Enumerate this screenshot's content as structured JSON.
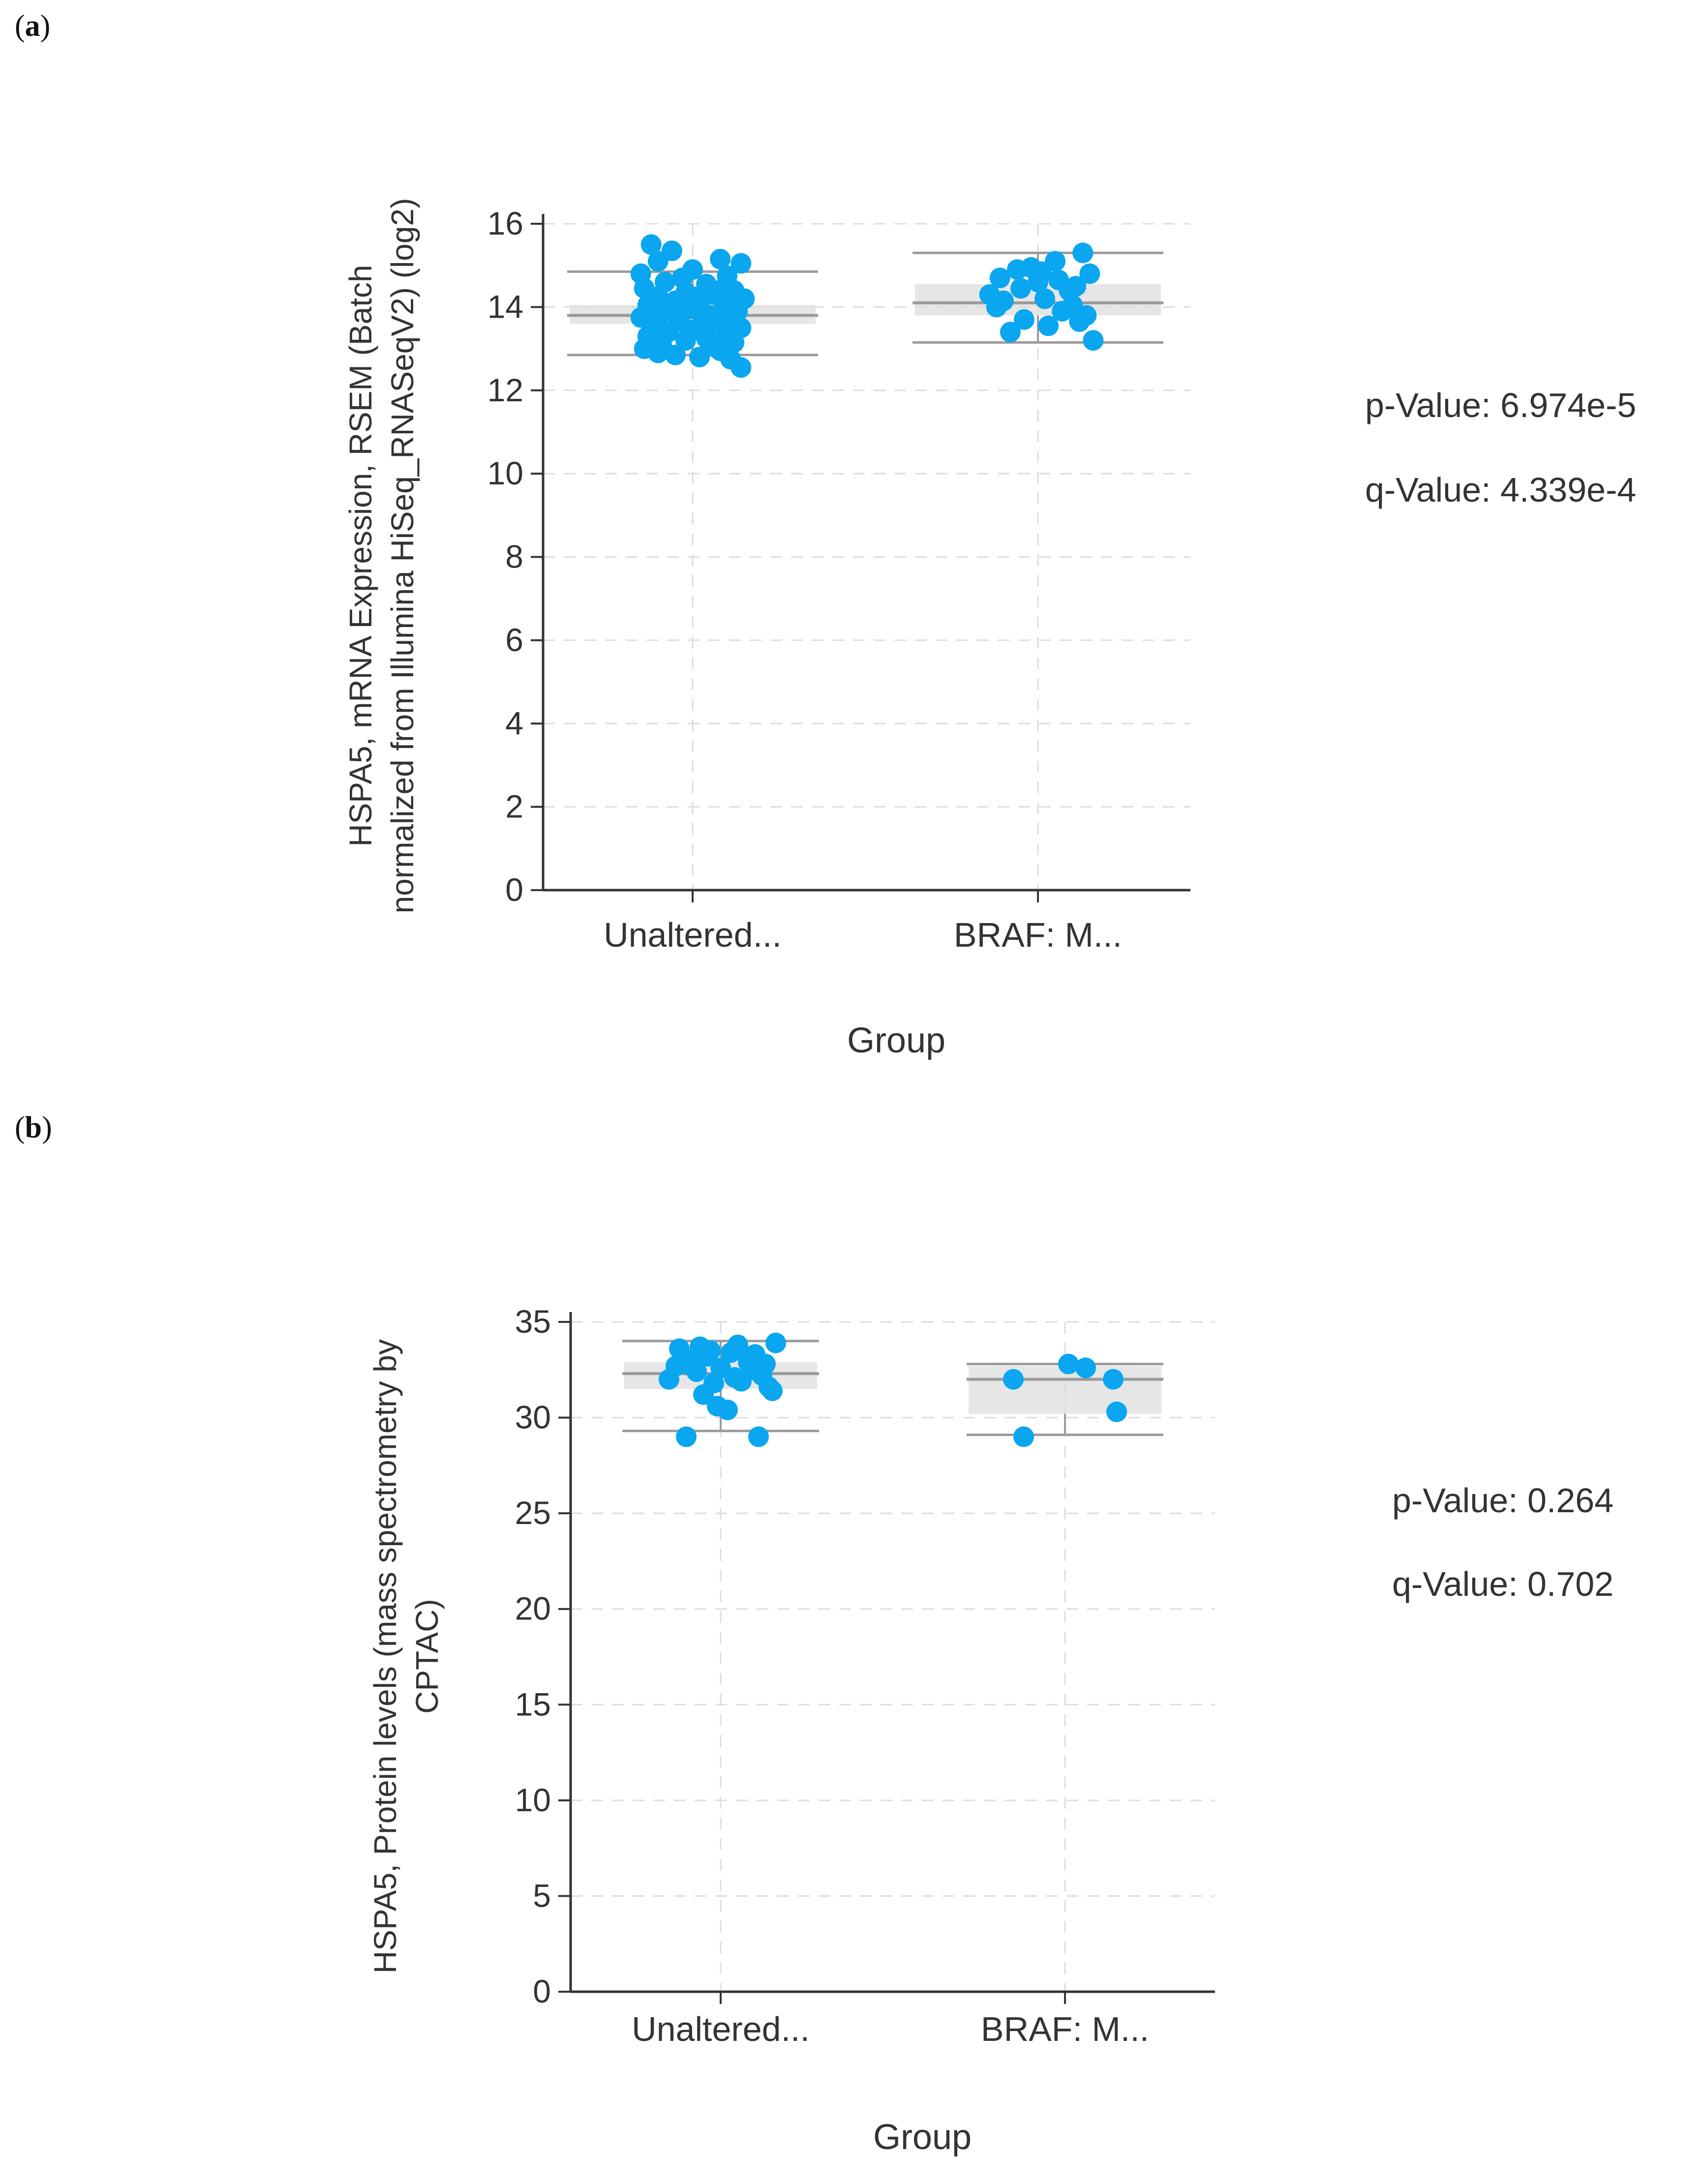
{
  "chart_data": [
    {
      "type": "scatter",
      "panel": "a",
      "title": "",
      "xlabel": "Group",
      "ylabel_lines": [
        "HSPA5, mRNA Expression, RSEM (Batch",
        "normalized from Illumina HiSeq_RNASeqV2) (log2)"
      ],
      "categories": [
        "Unaltered...",
        "BRAF: M..."
      ],
      "ylim": [
        0,
        16
      ],
      "yticks": [
        0,
        2,
        4,
        6,
        8,
        10,
        12,
        14,
        16
      ],
      "grid": true,
      "stats": {
        "p_value": "p-Value: 6.974e-5",
        "q_value": "q-Value: 4.339e-4"
      },
      "boxes": [
        {
          "whisker_low": 12.85,
          "q1": 13.6,
          "median": 13.8,
          "q3": 14.05,
          "whisker_high": 14.85
        },
        {
          "whisker_low": 13.15,
          "q1": 13.8,
          "median": 14.1,
          "q3": 14.55,
          "whisker_high": 15.3
        }
      ],
      "series": [
        {
          "name": "Unaltered...",
          "points": [
            [
              -0.12,
              15.5
            ],
            [
              -0.06,
              15.35
            ],
            [
              -0.1,
              15.1
            ],
            [
              0.08,
              15.15
            ],
            [
              0.14,
              15.05
            ],
            [
              -0.15,
              14.8
            ],
            [
              0.0,
              14.9
            ],
            [
              0.1,
              14.75
            ],
            [
              -0.08,
              14.6
            ],
            [
              0.04,
              14.55
            ],
            [
              -0.14,
              14.45
            ],
            [
              0.12,
              14.4
            ],
            [
              -0.02,
              14.35
            ],
            [
              0.06,
              14.3
            ],
            [
              -0.1,
              14.25
            ],
            [
              0.15,
              14.2
            ],
            [
              -0.05,
              14.15
            ],
            [
              0.02,
              14.1
            ],
            [
              -0.13,
              14.05
            ],
            [
              0.09,
              14.0
            ],
            [
              -0.01,
              13.95
            ],
            [
              0.13,
              13.9
            ],
            [
              -0.09,
              13.85
            ],
            [
              0.05,
              13.8
            ],
            [
              -0.15,
              13.75
            ],
            [
              0.11,
              13.7
            ],
            [
              -0.04,
              13.65
            ],
            [
              0.07,
              13.6
            ],
            [
              -0.11,
              13.55
            ],
            [
              0.14,
              13.5
            ],
            [
              0.0,
              13.45
            ],
            [
              -0.07,
              13.4
            ],
            [
              0.1,
              13.35
            ],
            [
              -0.13,
              13.3
            ],
            [
              0.04,
              13.25
            ],
            [
              -0.02,
              13.2
            ],
            [
              0.12,
              13.15
            ],
            [
              -0.09,
              13.1
            ],
            [
              0.06,
              13.05
            ],
            [
              -0.14,
              13.0
            ],
            [
              0.08,
              12.95
            ],
            [
              -0.05,
              12.85
            ],
            [
              0.02,
              12.8
            ],
            [
              0.11,
              12.75
            ],
            [
              -0.1,
              12.9
            ],
            [
              0.14,
              12.55
            ],
            [
              -0.03,
              14.7
            ],
            [
              0.03,
              13.7
            ],
            [
              -0.06,
              14.0
            ],
            [
              0.09,
              14.45
            ],
            [
              -0.12,
              13.6
            ],
            [
              0.05,
              13.15
            ],
            [
              0.13,
              14.1
            ],
            [
              -0.08,
              13.35
            ],
            [
              0.0,
              14.25
            ]
          ]
        },
        {
          "name": "BRAF: M...",
          "points": [
            [
              -0.14,
              14.3
            ],
            [
              -0.11,
              14.7
            ],
            [
              -0.06,
              14.9
            ],
            [
              0.0,
              14.6
            ],
            [
              0.05,
              15.1
            ],
            [
              0.09,
              14.4
            ],
            [
              0.13,
              15.3
            ],
            [
              0.15,
              14.8
            ],
            [
              -0.12,
              14.0
            ],
            [
              -0.04,
              13.7
            ],
            [
              0.02,
              14.2
            ],
            [
              0.07,
              13.9
            ],
            [
              0.11,
              14.5
            ],
            [
              -0.08,
              13.4
            ],
            [
              0.03,
              13.55
            ],
            [
              0.14,
              13.8
            ],
            [
              -0.02,
              14.95
            ],
            [
              0.1,
              14.05
            ],
            [
              0.16,
              13.2
            ],
            [
              -0.1,
              14.15
            ],
            [
              0.06,
              14.65
            ],
            [
              -0.05,
              14.45
            ],
            [
              0.12,
              13.65
            ],
            [
              0.01,
              14.85
            ]
          ]
        }
      ]
    },
    {
      "type": "scatter",
      "panel": "b",
      "title": "",
      "xlabel": "Group",
      "ylabel_lines": [
        "HSPA5, Protein levels (mass spectrometry by",
        "CPTAC)"
      ],
      "categories": [
        "Unaltered...",
        "BRAF: M..."
      ],
      "ylim": [
        0,
        35
      ],
      "yticks": [
        0,
        5,
        10,
        15,
        20,
        25,
        30,
        35
      ],
      "grid": true,
      "stats": {
        "p_value": "p-Value: 0.264",
        "q_value": "q-Value: 0.702"
      },
      "boxes": [
        {
          "whisker_low": 29.3,
          "q1": 31.5,
          "median": 32.3,
          "q3": 32.9,
          "whisker_high": 34.0
        },
        {
          "whisker_low": 29.1,
          "q1": 30.2,
          "median": 32.0,
          "q3": 32.7,
          "whisker_high": 32.8
        }
      ],
      "series": [
        {
          "name": "Unaltered...",
          "points": [
            [
              -0.15,
              32.0
            ],
            [
              -0.12,
              33.6
            ],
            [
              -0.1,
              32.8
            ],
            [
              -0.07,
              32.4
            ],
            [
              -0.04,
              33.2
            ],
            [
              -0.02,
              31.8
            ],
            [
              0.0,
              32.6
            ],
            [
              0.03,
              33.4
            ],
            [
              0.05,
              33.8
            ],
            [
              0.08,
              32.9
            ],
            [
              0.1,
              33.3
            ],
            [
              0.12,
              32.2
            ],
            [
              0.14,
              31.6
            ],
            [
              0.16,
              33.9
            ],
            [
              -0.13,
              32.7
            ],
            [
              -0.09,
              33.0
            ],
            [
              -0.05,
              31.2
            ],
            [
              -0.01,
              30.6
            ],
            [
              0.02,
              30.4
            ],
            [
              0.06,
              31.9
            ],
            [
              0.09,
              32.5
            ],
            [
              0.13,
              32.8
            ],
            [
              0.15,
              31.4
            ],
            [
              -0.03,
              33.5
            ],
            [
              -0.1,
              29.0
            ],
            [
              0.11,
              29.0
            ],
            [
              0.04,
              32.1
            ],
            [
              -0.06,
              33.7
            ]
          ]
        },
        {
          "name": "BRAF: M...",
          "points": [
            [
              -0.15,
              32.0
            ],
            [
              -0.12,
              29.0
            ],
            [
              0.01,
              32.8
            ],
            [
              0.06,
              32.6
            ],
            [
              0.14,
              32.0
            ],
            [
              0.15,
              30.3
            ]
          ]
        }
      ]
    }
  ],
  "panel_labels": {
    "a": "a",
    "b": "b"
  },
  "colors": {
    "point": "#0aa6ef",
    "axis": "#333333",
    "grid": "#dddddd",
    "box": "#9a9a9a",
    "box_fill": "#dcdcdc",
    "text": "#333333"
  }
}
